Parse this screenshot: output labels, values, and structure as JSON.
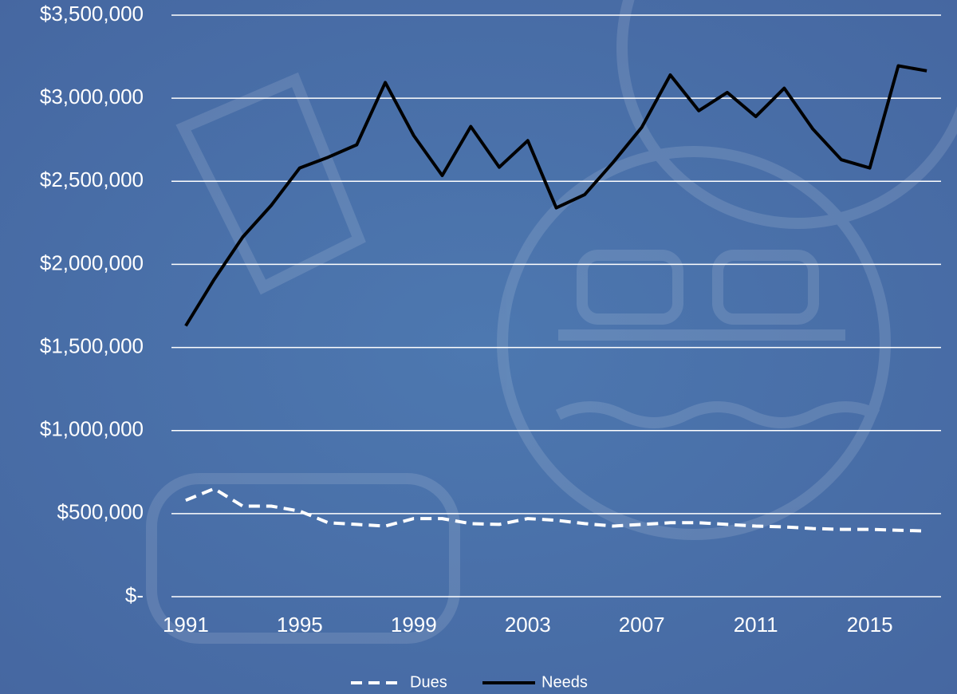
{
  "chart_data": {
    "type": "line",
    "x": [
      1991,
      1992,
      1993,
      1994,
      1995,
      1996,
      1997,
      1998,
      1999,
      2000,
      2001,
      2002,
      2003,
      2004,
      2005,
      2006,
      2007,
      2008,
      2009,
      2010,
      2011,
      2012,
      2013,
      2014,
      2015,
      2016,
      2017
    ],
    "series": [
      {
        "name": "Dues",
        "color": "#ffffff",
        "dashed": true,
        "values": [
          580000,
          650000,
          545000,
          545000,
          515000,
          445000,
          435000,
          425000,
          470000,
          470000,
          440000,
          435000,
          470000,
          460000,
          440000,
          425000,
          435000,
          445000,
          445000,
          435000,
          425000,
          420000,
          410000,
          405000,
          405000,
          400000,
          395000
        ]
      },
      {
        "name": "Needs",
        "color": "#000000",
        "dashed": false,
        "values": [
          1630000,
          1910000,
          2165000,
          2355000,
          2580000,
          2645000,
          2720000,
          3095000,
          2775000,
          2535000,
          2830000,
          2585000,
          2745000,
          2340000,
          2420000,
          2615000,
          2825000,
          3140000,
          2925000,
          3035000,
          2890000,
          3060000,
          2815000,
          2630000,
          2580000,
          3195000,
          3165000
        ]
      }
    ],
    "xlim": [
      1990.5,
      2017.5
    ],
    "xticks": [
      1991,
      1995,
      1999,
      2003,
      2007,
      2011,
      2015
    ],
    "ylim": [
      0,
      3500000
    ],
    "yticks": [
      {
        "value": 0,
        "label": "$-"
      },
      {
        "value": 500000,
        "label": "$500,000"
      },
      {
        "value": 1000000,
        "label": "$1,000,000"
      },
      {
        "value": 1500000,
        "label": "$1,500,000"
      },
      {
        "value": 2000000,
        "label": "$2,000,000"
      },
      {
        "value": 2500000,
        "label": "$2,500,000"
      },
      {
        "value": 3000000,
        "label": "$3,000,000"
      },
      {
        "value": 3500000,
        "label": "$3,500,000"
      }
    ],
    "grid": true,
    "legend": "bottom"
  }
}
